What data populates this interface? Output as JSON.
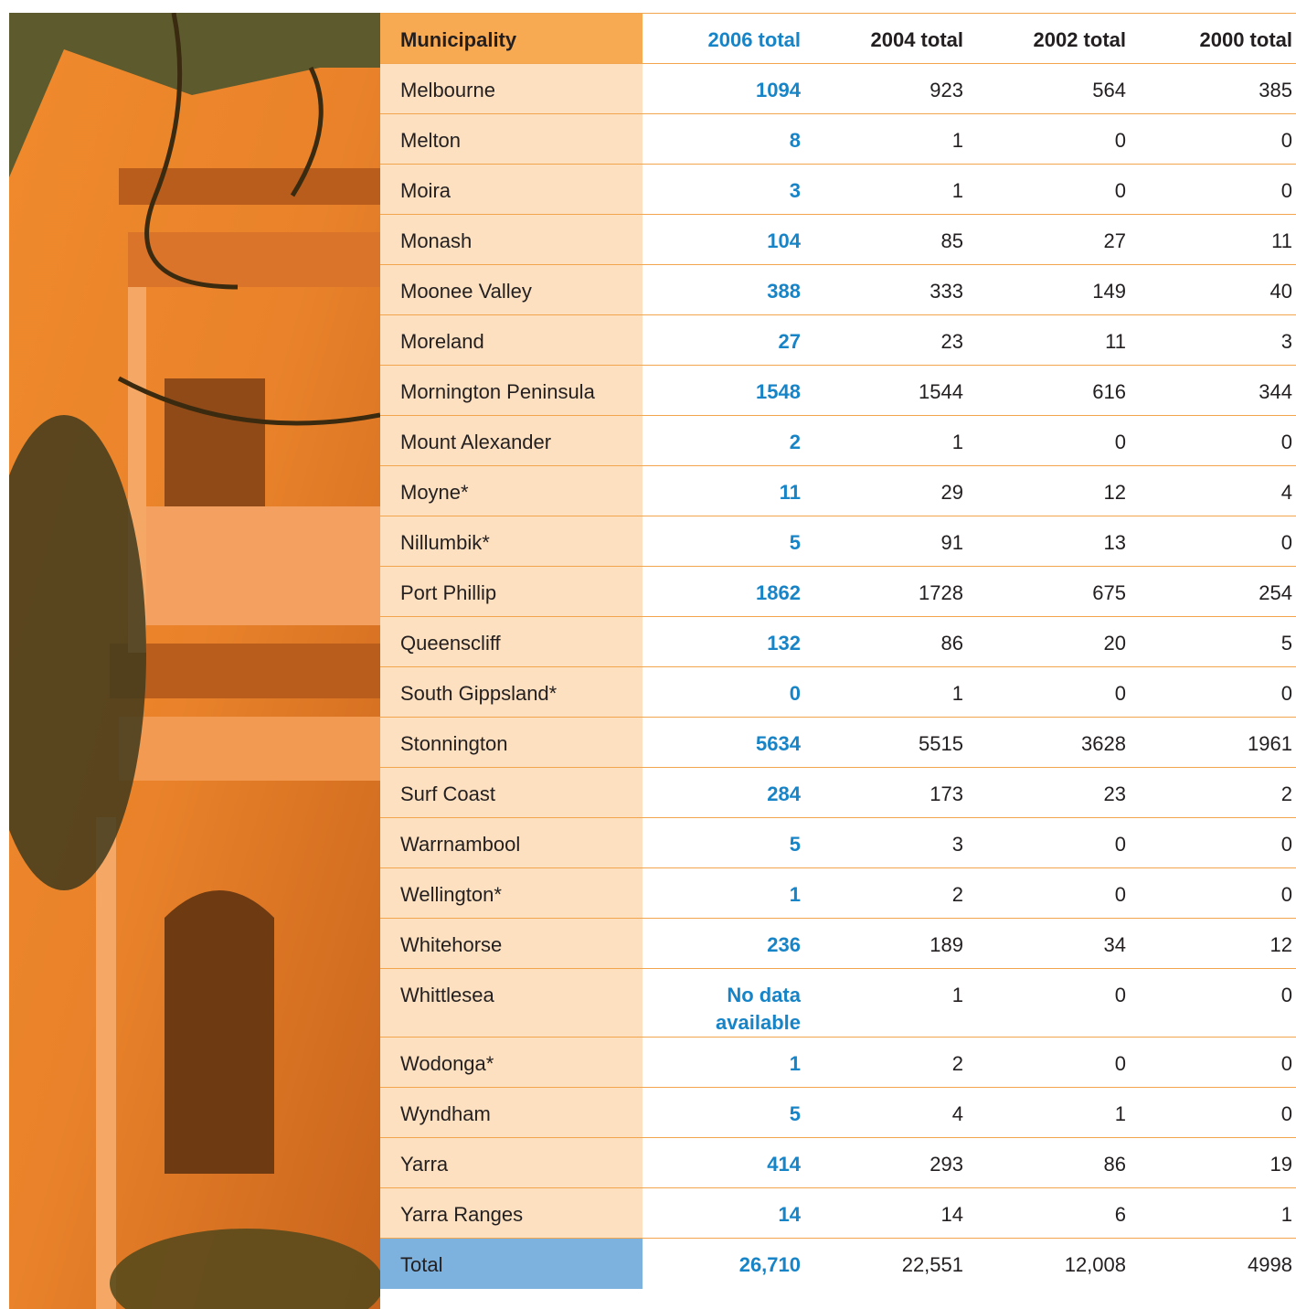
{
  "table": {
    "headers": [
      "Municipality",
      "2006 total",
      "2004 total",
      "2002 total",
      "2000 total"
    ],
    "rows": [
      [
        "Melbourne",
        "1094",
        "923",
        "564",
        "385"
      ],
      [
        "Melton",
        "8",
        "1",
        "0",
        "0"
      ],
      [
        "Moira",
        "3",
        "1",
        "0",
        "0"
      ],
      [
        "Monash",
        "104",
        "85",
        "27",
        "11"
      ],
      [
        "Moonee Valley",
        "388",
        "333",
        "149",
        "40"
      ],
      [
        "Moreland",
        "27",
        "23",
        "11",
        "3"
      ],
      [
        "Mornington Peninsula",
        "1548",
        "1544",
        "616",
        "344"
      ],
      [
        "Mount Alexander",
        "2",
        "1",
        "0",
        "0"
      ],
      [
        "Moyne*",
        "11",
        "29",
        "12",
        "4"
      ],
      [
        "Nillumbik*",
        "5",
        "91",
        "13",
        "0"
      ],
      [
        "Port Phillip",
        "1862",
        "1728",
        "675",
        "254"
      ],
      [
        "Queenscliff",
        "132",
        "86",
        "20",
        "5"
      ],
      [
        "South Gippsland*",
        "0",
        "1",
        "0",
        "0"
      ],
      [
        "Stonnington",
        "5634",
        "5515",
        "3628",
        "1961"
      ],
      [
        "Surf Coast",
        "284",
        "173",
        "23",
        "2"
      ],
      [
        "Warrnambool",
        "5",
        "3",
        "0",
        "0"
      ],
      [
        "Wellington*",
        "1",
        "2",
        "0",
        "0"
      ],
      [
        "Whitehorse",
        "236",
        "189",
        "34",
        "12"
      ],
      [
        "Whittlesea",
        "No data available",
        "1",
        "0",
        "0"
      ],
      [
        "Wodonga*",
        "1",
        "2",
        "0",
        "0"
      ],
      [
        "Wyndham",
        "5",
        "4",
        "1",
        "0"
      ],
      [
        "Yarra",
        "414",
        "293",
        "86",
        "19"
      ],
      [
        "Yarra Ranges",
        "14",
        "14",
        "6",
        "1"
      ]
    ],
    "total": [
      "Total",
      "26,710",
      "22,551",
      "12,008",
      "4998"
    ]
  }
}
